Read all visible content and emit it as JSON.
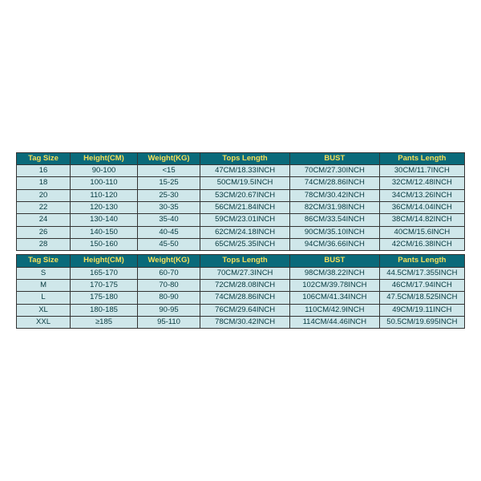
{
  "header_bg": "#0a6a7a",
  "header_fg": "#f5e05a",
  "cell_bg": "#cfe7ea",
  "cell_fg": "#063a40",
  "border_color": "#333333",
  "table1": {
    "headers": [
      "Tag Size",
      "Height(CM)",
      "Weight(KG)",
      "Tops Length",
      "BUST",
      "Pants Length"
    ],
    "rows": [
      [
        "16",
        "90-100",
        "<15",
        "47CM/18.33INCH",
        "70CM/27.30INCH",
        "30CM/11.7INCH"
      ],
      [
        "18",
        "100-110",
        "15-25",
        "50CM/19.5INCH",
        "74CM/28.86INCH",
        "32CM/12.48INCH"
      ],
      [
        "20",
        "110-120",
        "25-30",
        "53CM/20.67INCH",
        "78CM/30.42INCH",
        "34CM/13.26INCH"
      ],
      [
        "22",
        "120-130",
        "30-35",
        "56CM/21.84INCH",
        "82CM/31.98INCH",
        "36CM/14.04INCH"
      ],
      [
        "24",
        "130-140",
        "35-40",
        "59CM/23.01INCH",
        "86CM/33.54INCH",
        "38CM/14.82INCH"
      ],
      [
        "26",
        "140-150",
        "40-45",
        "62CM/24.18INCH",
        "90CM/35.10INCH",
        "40CM/15.6INCH"
      ],
      [
        "28",
        "150-160",
        "45-50",
        "65CM/25.35INCH",
        "94CM/36.66INCH",
        "42CM/16.38INCH"
      ]
    ]
  },
  "table2": {
    "headers": [
      "Tag Size",
      "Height(CM)",
      "Weight(KG)",
      "Tops Length",
      "BUST",
      "Pants Length"
    ],
    "rows": [
      [
        "S",
        "165-170",
        "60-70",
        "70CM/27.3INCH",
        "98CM/38.22INCH",
        "44.5CM/17.355INCH"
      ],
      [
        "M",
        "170-175",
        "70-80",
        "72CM/28.08INCH",
        "102CM/39.78INCH",
        "46CM/17.94INCH"
      ],
      [
        "L",
        "175-180",
        "80-90",
        "74CM/28.86INCH",
        "106CM/41.34INCH",
        "47.5CM/18.525INCH"
      ],
      [
        "XL",
        "180-185",
        "90-95",
        "76CM/29.64INCH",
        "110CM/42.9INCH",
        "49CM/19.11INCH"
      ],
      [
        "XXL",
        "≥185",
        "95-110",
        "78CM/30.42INCH",
        "114CM/44.46INCH",
        "50.5CM/19.695INCH"
      ]
    ]
  }
}
